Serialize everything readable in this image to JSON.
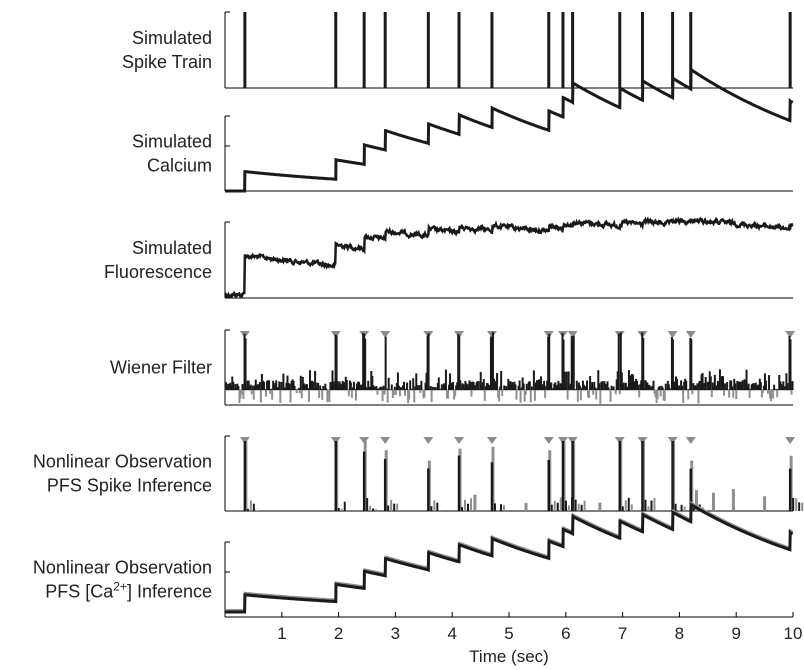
{
  "chart_data": {
    "type": "line",
    "xlabel": "Time (sec)",
    "xlim": [
      0,
      10
    ],
    "x_ticks": [
      "1",
      "2",
      "3",
      "4",
      "5",
      "6",
      "7",
      "8",
      "9",
      "10"
    ],
    "spike_times": [
      0.35,
      1.95,
      2.45,
      2.82,
      3.58,
      4.12,
      4.7,
      5.7,
      5.95,
      6.12,
      6.95,
      7.35,
      7.88,
      8.2,
      9.95
    ],
    "panels": [
      {
        "id": "spike-train",
        "label_lines": [
          "Simulated",
          "Spike Train"
        ],
        "kind": "spikes"
      },
      {
        "id": "calcium",
        "label_lines": [
          "Simulated",
          "Calcium"
        ],
        "kind": "calcium"
      },
      {
        "id": "fluorescence",
        "label_lines": [
          "Simulated",
          "Fluorescence"
        ],
        "kind": "fluorescence"
      },
      {
        "id": "wiener",
        "label_lines": [
          "Wiener Filter"
        ],
        "kind": "wiener",
        "markers": true
      },
      {
        "id": "pfs-spike",
        "label_lines": [
          "Nonlinear Observation",
          "PFS Spike Inference"
        ],
        "kind": "inference",
        "markers": true
      },
      {
        "id": "pfs-ca",
        "label_lines": [
          "Nonlinear Observation",
          "PFS [Ca",
          "2+",
          "] Inference"
        ],
        "kind": "ca_inference"
      }
    ],
    "colors": {
      "trace": "#1a1a1a",
      "gray": "#8f8f8f",
      "marker": "#8c8c8c"
    },
    "grid": false
  }
}
